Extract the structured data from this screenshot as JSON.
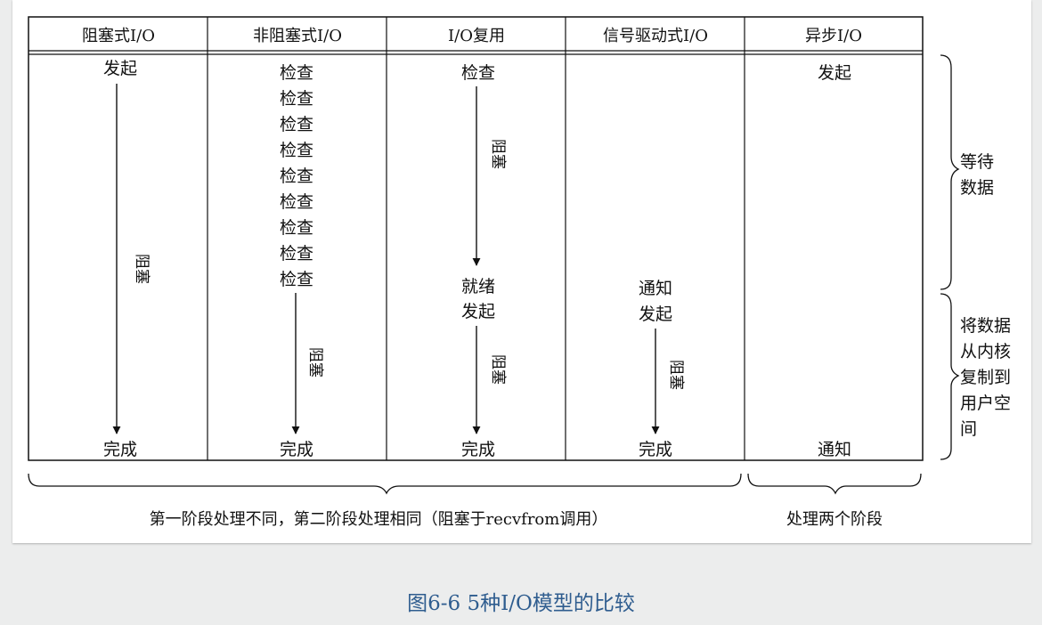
{
  "columns": [
    {
      "header": "阻塞式I/O",
      "events": {
        "start": "发起",
        "end": "完成"
      },
      "block_label": "阻塞"
    },
    {
      "header": "非阻塞式I/O",
      "checks": [
        "检查",
        "检查",
        "检查",
        "检查",
        "检查",
        "检查",
        "检查",
        "检查",
        "检查"
      ],
      "end": "完成",
      "block_label": "阻塞"
    },
    {
      "header": "I/O复用",
      "start": "检查",
      "block1_label": "阻塞",
      "ready": "就绪",
      "start2": "发起",
      "block2_label": "阻塞",
      "end": "完成"
    },
    {
      "header": "信号驱动式I/O",
      "notify": "通知",
      "start": "发起",
      "block_label": "阻塞",
      "end": "完成"
    },
    {
      "header": "异步I/O",
      "start": "发起",
      "end": "通知"
    }
  ],
  "phases": {
    "wait": [
      "等待",
      "数据"
    ],
    "copy": [
      "将数据",
      "从内核",
      "复制到",
      "用户空",
      "间"
    ]
  },
  "footer": {
    "left": "第一阶段处理不同，第二阶段处理相同（阻塞于recvfrom调用）",
    "right": "处理两个阶段"
  },
  "caption": "图6-6 5种I/O模型的比较"
}
